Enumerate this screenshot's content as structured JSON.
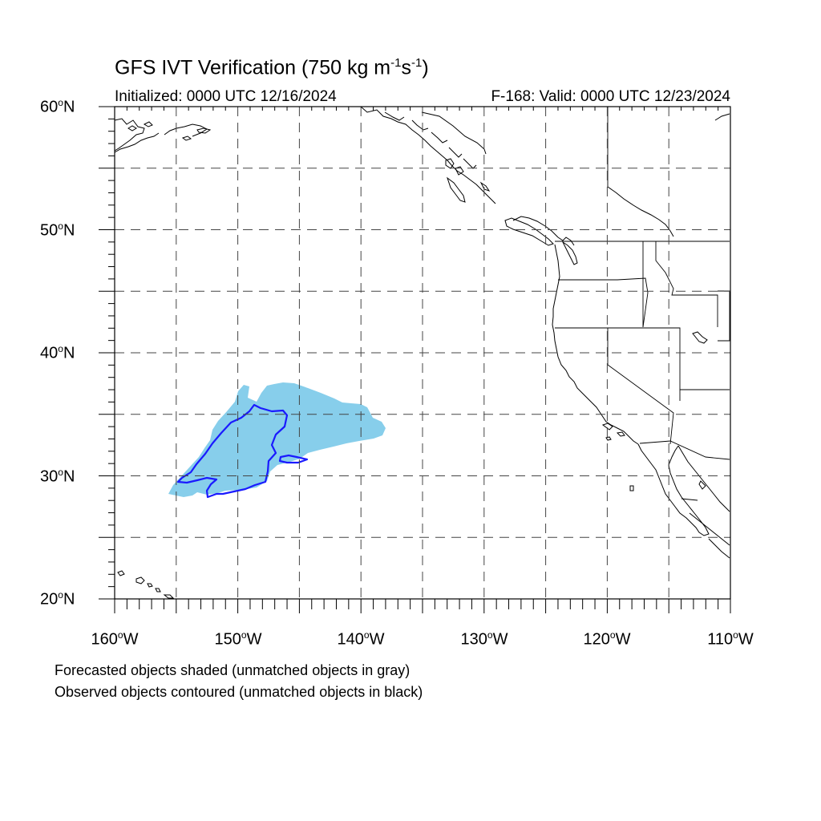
{
  "title": {
    "prefix": "GFS IVT Verification (750 kg m",
    "exp1": "-1",
    "mid": "s",
    "exp2": "-1",
    "suffix": ")"
  },
  "initialized": "Initialized: 0000 UTC 12/16/2024",
  "valid": "F-168: Valid: 0000 UTC 12/23/2024",
  "lat_labels": [
    "60",
    "50",
    "40",
    "30",
    "20"
  ],
  "lat_suffix": "N",
  "lon_labels": [
    "160",
    "150",
    "140",
    "130",
    "120",
    "110"
  ],
  "lon_suffix": "W",
  "degree_symbol": "o",
  "footnotes": [
    "Forecasted objects shaded (unmatched objects in gray)",
    "Observed objects contoured (unmatched objects in black)"
  ],
  "map": {
    "lon_range": [
      -160,
      -110
    ],
    "lat_range": [
      20,
      60
    ],
    "grid_interval_deg": 5,
    "label_interval_deg": 10,
    "gridlines": "dashed",
    "forecast_object_color": "#87ceeb",
    "observed_object_color": "#1a1aff",
    "coastline_color": "#000000"
  }
}
